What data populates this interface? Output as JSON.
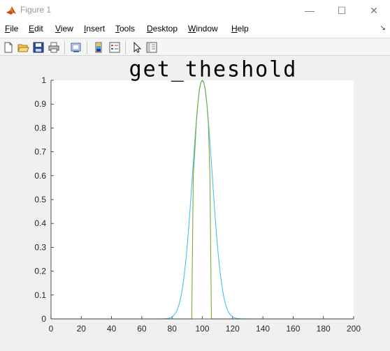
{
  "window": {
    "title": "Figure 1",
    "minimize_glyph": "—",
    "maximize_glyph": "☐",
    "close_glyph": "✕"
  },
  "menu": {
    "items": [
      {
        "mnemonic": "F",
        "rest": "ile"
      },
      {
        "mnemonic": "E",
        "rest": "dit"
      },
      {
        "mnemonic": "V",
        "rest": "iew"
      },
      {
        "mnemonic": "I",
        "rest": "nsert"
      },
      {
        "mnemonic": "T",
        "rest": "ools"
      },
      {
        "mnemonic": "D",
        "rest": "esktop"
      },
      {
        "mnemonic": "W",
        "rest": "indow"
      },
      {
        "mnemonic": "H",
        "rest": "elp"
      }
    ],
    "overflow_glyph": "↘"
  },
  "toolbar": {
    "icons": [
      "new-figure-icon",
      "open-icon",
      "save-icon",
      "print-icon",
      "link-plot-icon",
      "colorbar-icon",
      "legend-icon",
      "pointer-icon",
      "plot-tools-icon"
    ]
  },
  "colors": {
    "series_gaussian": "#4DBEEE",
    "series_threshold": "#77AC30",
    "axes_bg": "#ffffff"
  },
  "chart_data": {
    "type": "line",
    "title": "get_theshold",
    "xlabel": "",
    "ylabel": "",
    "xlim": [
      0,
      200
    ],
    "ylim": [
      0,
      1
    ],
    "xticks": [
      0,
      20,
      40,
      60,
      80,
      100,
      120,
      140,
      160,
      180,
      200
    ],
    "yticks": [
      0,
      0.1,
      0.2,
      0.3,
      0.4,
      0.5,
      0.6,
      0.7,
      0.8,
      0.9,
      1
    ],
    "ytick_labels": [
      "0",
      "0.1",
      "0.2",
      "0.3",
      "0.4",
      "0.5",
      "0.6",
      "0.7",
      "0.8",
      "0.9",
      "1"
    ],
    "grid": false,
    "series": [
      {
        "kind": "gaussian",
        "color": "#4DBEEE",
        "center": 100,
        "sigma": 6.5,
        "peak": 1.0
      },
      {
        "kind": "threshold",
        "color": "#77AC30",
        "x": [
          0,
          93,
          94,
          95,
          96,
          97,
          98,
          99,
          100,
          101,
          102,
          103,
          104,
          105,
          106,
          107,
          200
        ],
        "y": [
          0,
          0,
          0.6,
          0.7,
          0.82,
          0.9,
          0.96,
          0.99,
          1.0,
          0.99,
          0.96,
          0.9,
          0.82,
          0.6,
          0,
          0,
          0
        ]
      }
    ]
  }
}
